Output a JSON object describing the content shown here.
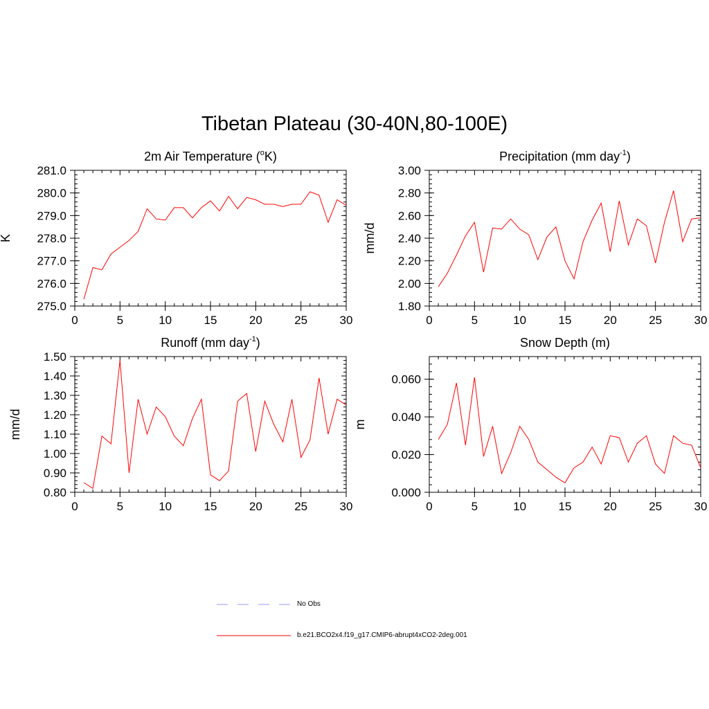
{
  "main_title": "Tibetan Plateau (30-40N,80-100E)",
  "legend": {
    "entries": [
      {
        "label": "No Obs",
        "color": "#9999ff",
        "dash": true
      },
      {
        "label": "b.e21.BCO2x4.f19_g17.CMIP6-abrupt4xCO2-2deg.001",
        "color": "#ff0000",
        "dash": false
      }
    ]
  },
  "chart_data": [
    {
      "type": "line",
      "title": "2m Air Temperature (",
      "title_sup": "o",
      "title_after": "K)",
      "ylabel": "K",
      "xlim": [
        0,
        30
      ],
      "ylim": [
        275.0,
        281.0
      ],
      "xticks": [
        0,
        5,
        10,
        15,
        20,
        25,
        30
      ],
      "yticks": [
        275.0,
        276.0,
        277.0,
        278.0,
        279.0,
        280.0,
        281.0
      ],
      "ytick_labels": [
        "275.0",
        "276.0",
        "277.0",
        "278.0",
        "279.0",
        "280.0",
        "281.0"
      ],
      "yminor_step": 0.2,
      "color": "#ff0000",
      "series": [
        {
          "x": [
            1,
            2,
            3,
            4,
            5,
            6,
            7,
            8,
            9,
            10,
            11,
            12,
            13,
            14,
            15,
            16,
            17,
            18,
            19,
            20,
            21,
            22,
            23,
            24,
            25,
            26,
            27,
            28,
            29,
            30
          ],
          "values": [
            275.3,
            276.7,
            276.6,
            277.3,
            277.6,
            277.9,
            278.3,
            279.3,
            278.85,
            278.8,
            279.35,
            279.35,
            278.9,
            279.35,
            279.65,
            279.2,
            279.85,
            279.3,
            279.8,
            279.7,
            279.5,
            279.5,
            279.4,
            279.5,
            279.5,
            280.05,
            279.9,
            278.7,
            279.7,
            279.45
          ]
        }
      ]
    },
    {
      "type": "line",
      "title": "Precipitation (mm day",
      "title_sup": "-1",
      "title_after": ")",
      "ylabel": "mm/d",
      "xlim": [
        0,
        30
      ],
      "ylim": [
        1.8,
        3.0
      ],
      "xticks": [
        0,
        5,
        10,
        15,
        20,
        25,
        30
      ],
      "yticks": [
        1.8,
        2.0,
        2.2,
        2.4,
        2.6,
        2.8,
        3.0
      ],
      "ytick_labels": [
        "1.80",
        "2.00",
        "2.20",
        "2.40",
        "2.60",
        "2.80",
        "3.00"
      ],
      "yminor_step": 0.04,
      "color": "#ff0000",
      "series": [
        {
          "x": [
            1,
            2,
            3,
            4,
            5,
            6,
            7,
            8,
            9,
            10,
            11,
            12,
            13,
            14,
            15,
            16,
            17,
            18,
            19,
            20,
            21,
            22,
            23,
            24,
            25,
            26,
            27,
            28,
            29,
            30
          ],
          "values": [
            1.97,
            2.09,
            2.25,
            2.42,
            2.54,
            2.1,
            2.49,
            2.48,
            2.57,
            2.48,
            2.43,
            2.21,
            2.41,
            2.5,
            2.2,
            2.04,
            2.37,
            2.56,
            2.71,
            2.28,
            2.73,
            2.34,
            2.57,
            2.51,
            2.18,
            2.54,
            2.82,
            2.37,
            2.57,
            2.58
          ]
        }
      ]
    },
    {
      "type": "line",
      "title": "Runoff (mm day",
      "title_sup": "-1",
      "title_after": ")",
      "ylabel": "mm/d",
      "xlim": [
        0,
        30
      ],
      "ylim": [
        0.8,
        1.5
      ],
      "xticks": [
        0,
        5,
        10,
        15,
        20,
        25,
        30
      ],
      "yticks": [
        0.8,
        0.9,
        1.0,
        1.1,
        1.2,
        1.3,
        1.4,
        1.5
      ],
      "ytick_labels": [
        "0.80",
        "0.90",
        "1.00",
        "1.10",
        "1.20",
        "1.30",
        "1.40",
        "1.50"
      ],
      "yminor_step": 0.02,
      "color": "#ff0000",
      "series": [
        {
          "x": [
            1,
            2,
            3,
            4,
            5,
            6,
            7,
            8,
            9,
            10,
            11,
            12,
            13,
            14,
            15,
            16,
            17,
            18,
            19,
            20,
            21,
            22,
            23,
            24,
            25,
            26,
            27,
            28,
            29,
            30
          ],
          "values": [
            0.85,
            0.82,
            1.09,
            1.05,
            1.48,
            0.9,
            1.28,
            1.1,
            1.24,
            1.19,
            1.09,
            1.04,
            1.18,
            1.28,
            0.89,
            0.86,
            0.91,
            1.27,
            1.31,
            1.01,
            1.27,
            1.15,
            1.06,
            1.28,
            0.98,
            1.07,
            1.39,
            1.1,
            1.28,
            1.25
          ]
        }
      ]
    },
    {
      "type": "line",
      "title": "Snow Depth (m)",
      "title_sup": "",
      "title_after": "",
      "ylabel": "m",
      "xlim": [
        0,
        30
      ],
      "ylim": [
        0.0,
        0.072
      ],
      "xticks": [
        0,
        5,
        10,
        15,
        20,
        25,
        30
      ],
      "yticks": [
        0.0,
        0.02,
        0.04,
        0.06
      ],
      "ytick_labels": [
        "0.000",
        "0.020",
        "0.040",
        "0.060"
      ],
      "yminor_step": 0.004,
      "color": "#ff0000",
      "series": [
        {
          "x": [
            1,
            2,
            3,
            4,
            5,
            6,
            7,
            8,
            9,
            10,
            11,
            12,
            13,
            14,
            15,
            16,
            17,
            18,
            19,
            20,
            21,
            22,
            23,
            24,
            25,
            26,
            27,
            28,
            29,
            30
          ],
          "values": [
            0.028,
            0.036,
            0.058,
            0.025,
            0.061,
            0.019,
            0.035,
            0.01,
            0.021,
            0.035,
            0.028,
            0.016,
            0.012,
            0.008,
            0.005,
            0.013,
            0.016,
            0.024,
            0.015,
            0.03,
            0.029,
            0.016,
            0.026,
            0.03,
            0.015,
            0.01,
            0.03,
            0.026,
            0.025,
            0.013
          ]
        }
      ]
    }
  ]
}
